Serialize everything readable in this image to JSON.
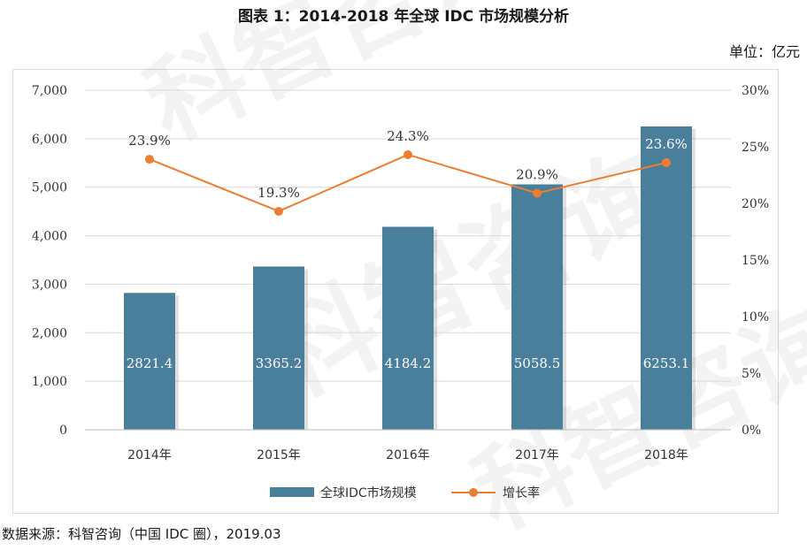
{
  "header": {
    "title": "图表 1：2014-2018 年全球 IDC 市场规模分析",
    "unit": "单位：亿元"
  },
  "footer": {
    "source": "数据来源：科智咨询（中国 IDC 圈），2019.03"
  },
  "watermark": {
    "text": "科智咨询"
  },
  "chart_data": {
    "type": "bar",
    "categories": [
      "2014年",
      "2015年",
      "2016年",
      "2017年",
      "2018年"
    ],
    "series": [
      {
        "name": "全球IDC市场规模",
        "type": "bar",
        "axis": "left",
        "values": [
          2821.4,
          3365.2,
          4184.2,
          5058.5,
          6253.1
        ],
        "labels": [
          "2821.4",
          "3365.2",
          "4184.2",
          "5058.5",
          "6253.1"
        ],
        "color": "#4a7f9c"
      },
      {
        "name": "增长率",
        "type": "line",
        "axis": "right",
        "values": [
          23.9,
          19.3,
          24.3,
          20.9,
          23.6
        ],
        "labels": [
          "23.9%",
          "19.3%",
          "24.3%",
          "20.9%",
          "23.6%"
        ],
        "color": "#ed7d31"
      }
    ],
    "y_left": {
      "ylim": [
        0,
        7000
      ],
      "ticks": [
        0,
        1000,
        2000,
        3000,
        4000,
        5000,
        6000,
        7000
      ],
      "tick_labels": [
        "0",
        "1,000",
        "2,000",
        "3,000",
        "4,000",
        "5,000",
        "6,000",
        "7,000"
      ]
    },
    "y_right": {
      "ylim": [
        0,
        30
      ],
      "ticks": [
        0,
        5,
        10,
        15,
        20,
        25,
        30
      ],
      "tick_labels": [
        "0%",
        "5%",
        "10%",
        "15%",
        "20%",
        "25%",
        "30%"
      ]
    },
    "grid": true,
    "legend": "bottom"
  }
}
